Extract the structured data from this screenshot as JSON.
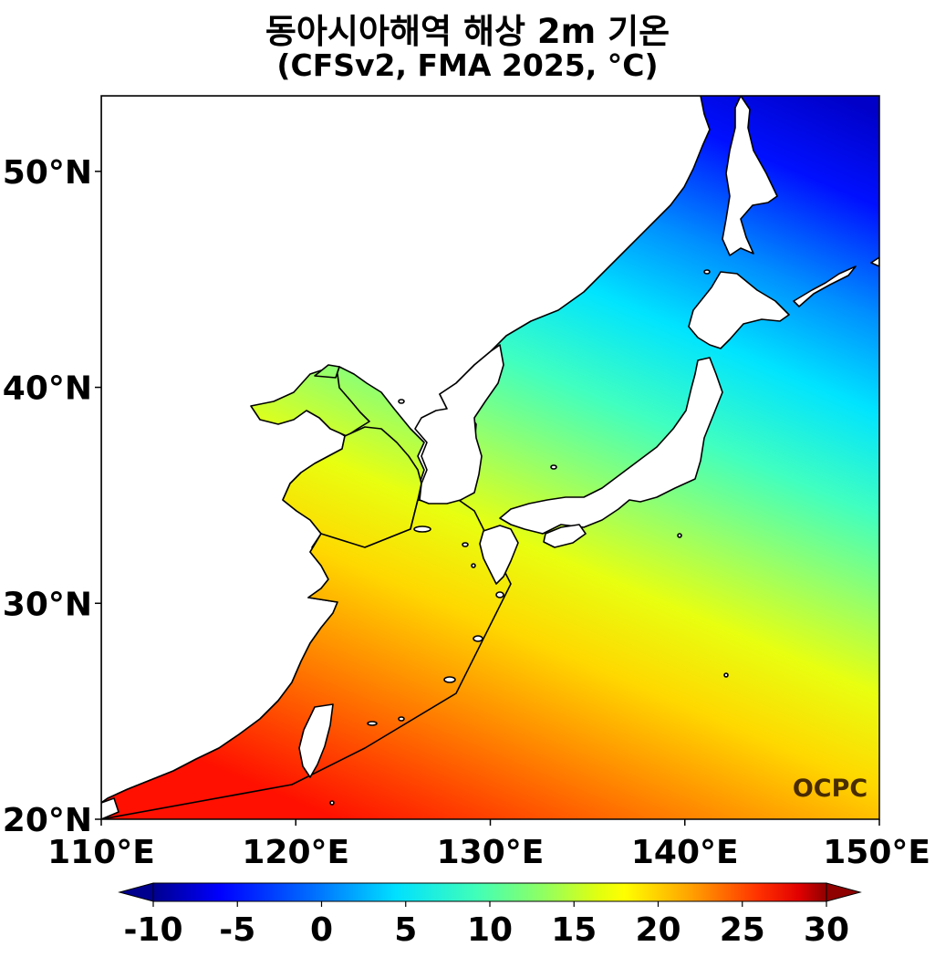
{
  "title": {
    "line1": "동아시아해역 해상 2m 기온",
    "line2": "(CFSv2, FMA 2025, °C)"
  },
  "map": {
    "lon_range": [
      110,
      150
    ],
    "lat_range": [
      20,
      53.5
    ],
    "lon_ticks": [
      "110°E",
      "120°E",
      "130°E",
      "140°E",
      "150°E"
    ],
    "lat_ticks": [
      "20°N",
      "30°N",
      "40°N",
      "50°N"
    ],
    "field": "sea-surface 2m air temperature",
    "land_fill": "#ffffff",
    "coast_color": "#000000"
  },
  "colorbar": {
    "min": -10,
    "max": 30,
    "ticks": [
      "-10",
      "-5",
      "0",
      "5",
      "10",
      "15",
      "20",
      "25",
      "30"
    ],
    "extend": "both",
    "colormap": "jet",
    "stops": [
      "#00007f",
      "#0000ff",
      "#0080ff",
      "#00e0ff",
      "#40ffb0",
      "#90ff60",
      "#e0ff10",
      "#ffff00",
      "#ffb000",
      "#ff6000",
      "#ff0000",
      "#7f0000"
    ]
  },
  "watermark": "OCPC"
}
